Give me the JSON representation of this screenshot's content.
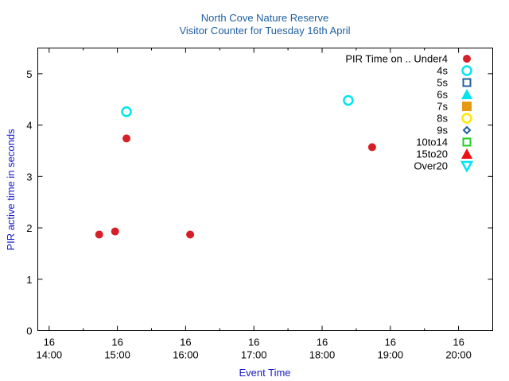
{
  "chart_data": {
    "type": "scatter",
    "title": "North Cove Nature Reserve",
    "subtitle": "Visitor Counter for Tuesday 16th April",
    "xlabel": "Event Time",
    "ylabel": "PIR active time in seconds",
    "xlim": [
      "13:50",
      "20:30"
    ],
    "ylim": [
      0,
      5.5
    ],
    "y_ticks": [
      "0",
      "1",
      "2",
      "3",
      "4",
      "5"
    ],
    "x_ticks": [
      {
        "day": "16",
        "time": "14:00"
      },
      {
        "day": "16",
        "time": "15:00"
      },
      {
        "day": "16",
        "time": "16:00"
      },
      {
        "day": "16",
        "time": "17:00"
      },
      {
        "day": "16",
        "time": "18:00"
      },
      {
        "day": "16",
        "time": "19:00"
      },
      {
        "day": "16",
        "time": "20:00"
      }
    ],
    "grid": false,
    "legend_position": "top-right",
    "legend_title": "PIR Time on ..",
    "series": [
      {
        "name": "Under4",
        "marker": "filled-circle",
        "color": "#d62027",
        "points": [
          {
            "x": "14:44",
            "y": 1.87
          },
          {
            "x": "14:58",
            "y": 1.93
          },
          {
            "x": "15:08",
            "y": 3.74
          },
          {
            "x": "16:04",
            "y": 1.87
          },
          {
            "x": "18:44",
            "y": 3.57
          }
        ]
      },
      {
        "name": "4s",
        "marker": "open-circle",
        "color": "#00e5ee",
        "points": [
          {
            "x": "15:08",
            "y": 4.26
          },
          {
            "x": "18:23",
            "y": 4.48
          }
        ]
      },
      {
        "name": "5s",
        "marker": "open-square",
        "color": "#1f5fa0",
        "points": []
      },
      {
        "name": "6s",
        "marker": "filled-triangle-up",
        "color": "#00e5ee",
        "points": []
      },
      {
        "name": "7s",
        "marker": "filled-square",
        "color": "#e69a12",
        "points": []
      },
      {
        "name": "8s",
        "marker": "open-circle",
        "color": "#ffe800",
        "points": []
      },
      {
        "name": "9s",
        "marker": "open-diamond",
        "color": "#1f5fa0",
        "points": []
      },
      {
        "name": "10to14",
        "marker": "open-square",
        "color": "#22cc22",
        "points": []
      },
      {
        "name": "15to20",
        "marker": "filled-triangle-up",
        "color": "#ee1111",
        "points": []
      },
      {
        "name": "Over20",
        "marker": "open-triangle-down",
        "color": "#00e5ee",
        "points": []
      }
    ]
  }
}
